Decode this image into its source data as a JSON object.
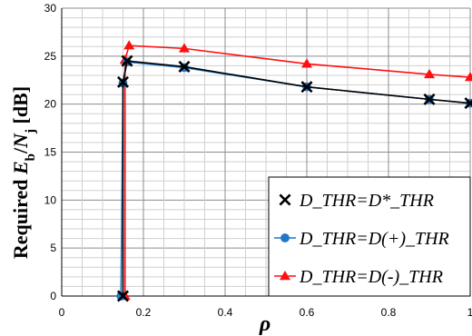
{
  "chart_data": {
    "type": "line",
    "xlabel": "ρ",
    "ylabel": {
      "parts": [
        "Required ",
        "E",
        "b",
        "/",
        "N",
        "j",
        " [dB]"
      ]
    },
    "xlim": [
      0,
      1
    ],
    "ylim": [
      0,
      30
    ],
    "xticks": [
      0,
      0.2,
      0.4,
      0.6,
      0.8,
      1
    ],
    "xtick_labels": [
      "0",
      "0.2",
      "0.4",
      "0.6",
      "0.8",
      "1"
    ],
    "yticks": [
      0,
      5,
      10,
      15,
      20,
      25,
      30
    ],
    "ytick_labels": [
      "0",
      "5",
      "10",
      "15",
      "20",
      "25",
      "30"
    ],
    "grid": true,
    "legend_position": "bottom-right",
    "series": [
      {
        "name": "D_THR=D*_THR",
        "color": "#000000",
        "marker": "x",
        "x": [
          0.15,
          0.15,
          0.16,
          0.3,
          0.6,
          0.9,
          1.0
        ],
        "y": [
          0,
          22.3,
          24.5,
          23.9,
          21.8,
          20.5,
          20.1
        ]
      },
      {
        "name": "D_THR=D(+)_THR",
        "color": "#1f77c8",
        "marker": "circle",
        "x": [
          0.145,
          0.15,
          0.16,
          0.3,
          0.6,
          0.9,
          1.0
        ],
        "y": [
          0,
          22.2,
          24.4,
          23.8,
          21.8,
          20.5,
          20.1
        ]
      },
      {
        "name": "D_THR=D(-)_THR",
        "color": "#ff1010",
        "marker": "triangle",
        "x": [
          0.155,
          0.155,
          0.165,
          0.3,
          0.6,
          0.9,
          1.0
        ],
        "y": [
          0,
          24.6,
          26.1,
          25.8,
          24.2,
          23.1,
          22.8
        ]
      }
    ]
  }
}
